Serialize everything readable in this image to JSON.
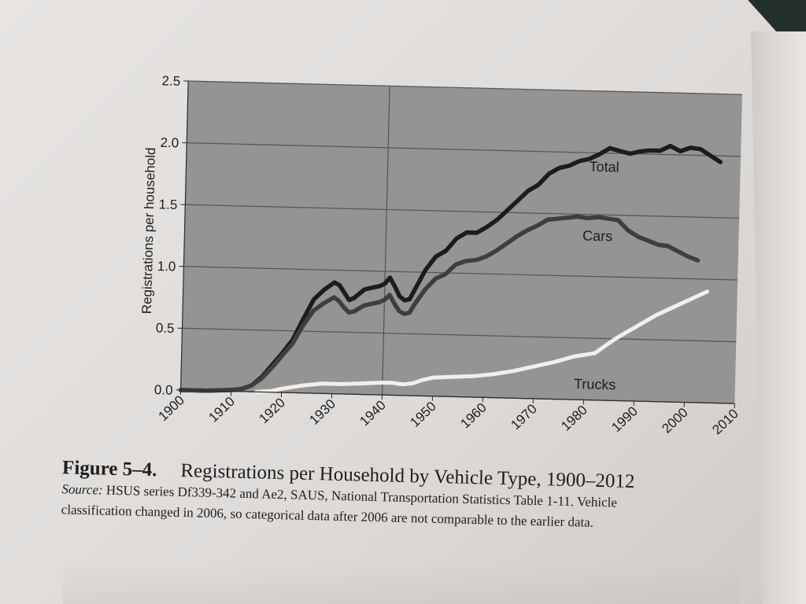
{
  "chart_data": {
    "type": "line",
    "ylabel": "Registrations per household",
    "xlabel": "",
    "xlim": [
      1900,
      2010
    ],
    "ylim": [
      0,
      2.5
    ],
    "x_ticks": [
      1900,
      1910,
      1920,
      1930,
      1940,
      1950,
      1960,
      1970,
      1980,
      1990,
      2000,
      2010
    ],
    "x_tick_labels": [
      "1900",
      "1910",
      "1920",
      "1930",
      "1940",
      "1950",
      "1960",
      "1970",
      "1980",
      "1990",
      "2000",
      "2010"
    ],
    "y_ticks": [
      0,
      0.5,
      1.0,
      1.5,
      2.0,
      2.5
    ],
    "y_tick_labels": [
      "0.0",
      "0.5",
      "1.0",
      "1.5",
      "2.0",
      "2.5"
    ],
    "grid": "horizontal",
    "vertical_reference_line": 1940,
    "series": [
      {
        "name": "Total",
        "color": "#1c1c1c",
        "label_at": [
          1980,
          1.85
        ],
        "points": [
          [
            1900,
            0.0
          ],
          [
            1905,
            0.0
          ],
          [
            1910,
            0.01
          ],
          [
            1912,
            0.02
          ],
          [
            1914,
            0.05
          ],
          [
            1916,
            0.12
          ],
          [
            1918,
            0.22
          ],
          [
            1920,
            0.32
          ],
          [
            1922,
            0.43
          ],
          [
            1924,
            0.6
          ],
          [
            1926,
            0.76
          ],
          [
            1928,
            0.84
          ],
          [
            1930,
            0.9
          ],
          [
            1931,
            0.88
          ],
          [
            1932,
            0.82
          ],
          [
            1933,
            0.76
          ],
          [
            1934,
            0.78
          ],
          [
            1936,
            0.85
          ],
          [
            1938,
            0.87
          ],
          [
            1939,
            0.88
          ],
          [
            1940,
            0.9
          ],
          [
            1941,
            0.95
          ],
          [
            1942,
            0.88
          ],
          [
            1943,
            0.8
          ],
          [
            1944,
            0.77
          ],
          [
            1945,
            0.78
          ],
          [
            1946,
            0.86
          ],
          [
            1948,
            1.02
          ],
          [
            1950,
            1.13
          ],
          [
            1952,
            1.18
          ],
          [
            1954,
            1.28
          ],
          [
            1956,
            1.33
          ],
          [
            1958,
            1.33
          ],
          [
            1960,
            1.38
          ],
          [
            1962,
            1.44
          ],
          [
            1964,
            1.52
          ],
          [
            1966,
            1.6
          ],
          [
            1968,
            1.68
          ],
          [
            1970,
            1.73
          ],
          [
            1972,
            1.82
          ],
          [
            1974,
            1.87
          ],
          [
            1976,
            1.89
          ],
          [
            1978,
            1.93
          ],
          [
            1980,
            1.95
          ],
          [
            1982,
            1.99
          ],
          [
            1984,
            2.04
          ],
          [
            1986,
            2.02
          ],
          [
            1988,
            2.0
          ],
          [
            1990,
            2.02
          ],
          [
            1992,
            2.03
          ],
          [
            1994,
            2.03
          ],
          [
            1996,
            2.07
          ],
          [
            1998,
            2.03
          ],
          [
            2000,
            2.06
          ],
          [
            2002,
            2.05
          ],
          [
            2004,
            2.0
          ],
          [
            2006,
            1.95
          ]
        ]
      },
      {
        "name": "Cars",
        "color": "#3e3e3e",
        "label_at": [
          1979,
          1.29
        ],
        "points": [
          [
            1900,
            0.0
          ],
          [
            1905,
            0.0
          ],
          [
            1910,
            0.01
          ],
          [
            1912,
            0.02
          ],
          [
            1914,
            0.05
          ],
          [
            1916,
            0.11
          ],
          [
            1918,
            0.2
          ],
          [
            1920,
            0.3
          ],
          [
            1922,
            0.4
          ],
          [
            1924,
            0.55
          ],
          [
            1926,
            0.67
          ],
          [
            1928,
            0.73
          ],
          [
            1930,
            0.78
          ],
          [
            1931,
            0.75
          ],
          [
            1932,
            0.7
          ],
          [
            1933,
            0.66
          ],
          [
            1934,
            0.67
          ],
          [
            1936,
            0.72
          ],
          [
            1938,
            0.74
          ],
          [
            1939,
            0.75
          ],
          [
            1940,
            0.77
          ],
          [
            1941,
            0.81
          ],
          [
            1942,
            0.74
          ],
          [
            1943,
            0.68
          ],
          [
            1944,
            0.66
          ],
          [
            1945,
            0.67
          ],
          [
            1946,
            0.74
          ],
          [
            1948,
            0.86
          ],
          [
            1950,
            0.95
          ],
          [
            1952,
            0.99
          ],
          [
            1954,
            1.07
          ],
          [
            1956,
            1.1
          ],
          [
            1958,
            1.11
          ],
          [
            1960,
            1.14
          ],
          [
            1962,
            1.19
          ],
          [
            1964,
            1.25
          ],
          [
            1966,
            1.31
          ],
          [
            1968,
            1.36
          ],
          [
            1970,
            1.4
          ],
          [
            1972,
            1.45
          ],
          [
            1974,
            1.46
          ],
          [
            1976,
            1.47
          ],
          [
            1978,
            1.48
          ],
          [
            1980,
            1.47
          ],
          [
            1982,
            1.48
          ],
          [
            1984,
            1.47
          ],
          [
            1986,
            1.46
          ],
          [
            1988,
            1.38
          ],
          [
            1990,
            1.33
          ],
          [
            1992,
            1.3
          ],
          [
            1994,
            1.27
          ],
          [
            1996,
            1.26
          ],
          [
            1998,
            1.22
          ],
          [
            2000,
            1.18
          ],
          [
            2002,
            1.15
          ]
        ]
      },
      {
        "name": "Trucks",
        "color": "#f1efea",
        "label_at": [
          1978,
          0.09
        ],
        "points": [
          [
            1915,
            0.0
          ],
          [
            1918,
            0.01
          ],
          [
            1920,
            0.03
          ],
          [
            1924,
            0.06
          ],
          [
            1928,
            0.08
          ],
          [
            1932,
            0.08
          ],
          [
            1936,
            0.09
          ],
          [
            1940,
            0.1
          ],
          [
            1942,
            0.1
          ],
          [
            1944,
            0.09
          ],
          [
            1946,
            0.1
          ],
          [
            1948,
            0.13
          ],
          [
            1950,
            0.15
          ],
          [
            1954,
            0.16
          ],
          [
            1958,
            0.17
          ],
          [
            1962,
            0.19
          ],
          [
            1966,
            0.22
          ],
          [
            1970,
            0.26
          ],
          [
            1974,
            0.3
          ],
          [
            1978,
            0.35
          ],
          [
            1982,
            0.38
          ],
          [
            1984,
            0.44
          ],
          [
            1986,
            0.5
          ],
          [
            1988,
            0.55
          ],
          [
            1990,
            0.6
          ],
          [
            1992,
            0.65
          ],
          [
            1994,
            0.7
          ],
          [
            1996,
            0.74
          ],
          [
            1998,
            0.78
          ],
          [
            2000,
            0.82
          ],
          [
            2002,
            0.86
          ],
          [
            2004,
            0.9
          ]
        ]
      }
    ]
  },
  "caption": {
    "figure_number": "Figure 5–4.",
    "title": "Registrations per Household by Vehicle Type, 1900–2012",
    "source_label": "Source:",
    "source_text": " HSUS series Df339-342 and Ae2, SAUS, National Transportation Statistics Table 1-11. Vehicle",
    "source_text_2": "classification changed in 2006, so categorical data after 2006 are not comparable to the earlier data."
  },
  "colors": {
    "plot_background": "#949494",
    "gridline": "#585858",
    "axis": "#2a2a2a",
    "text": "#1e1e1e",
    "paper": "#e4e1df"
  }
}
